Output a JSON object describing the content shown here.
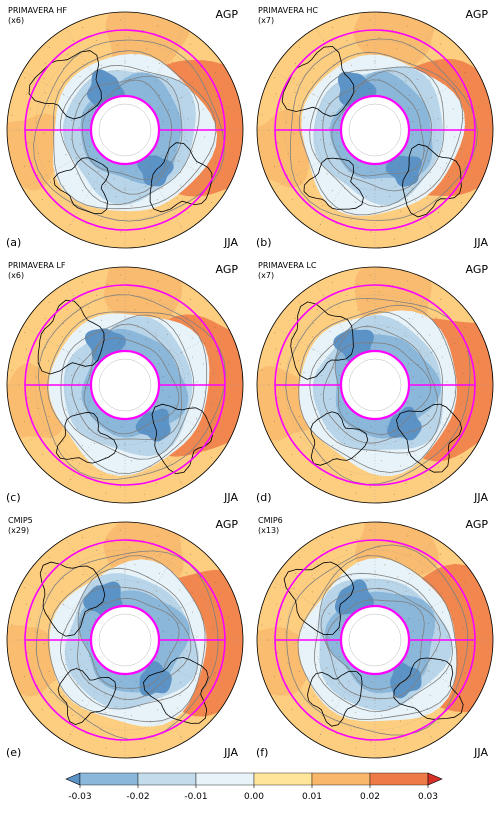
{
  "panels": [
    {
      "title": "PRIMAVERA HF",
      "count": "(x6)",
      "season": "AGP",
      "months": "JJA",
      "label": "(a)"
    },
    {
      "title": "PRIMAVERA HC",
      "count": "(x7)",
      "season": "AGP",
      "months": "JJA",
      "label": "(b)"
    },
    {
      "title": "PRIMAVERA LF",
      "count": "(x6)",
      "season": "AGP",
      "months": "JJA",
      "label": "(c)"
    },
    {
      "title": "PRIMAVERA LC",
      "count": "(x7)",
      "season": "AGP",
      "months": "JJA",
      "label": "(d)"
    },
    {
      "title": "CMIP5",
      "count": "(x29)",
      "season": "AGP",
      "months": "JJA",
      "label": "(e)"
    },
    {
      "title": "CMIP6",
      "count": "(x13)",
      "season": "AGP",
      "months": "JJA",
      "label": "(f)"
    }
  ],
  "colorbar": {
    "ticks": [
      "-0.03",
      "-0.02",
      "-0.01",
      "0.00",
      "0.01",
      "0.02",
      "0.03"
    ],
    "bins": [
      "#5c93c6",
      "#8ab7da",
      "#c2dcec",
      "#e7f3f8",
      "#fee59a",
      "#f8b76a",
      "#ee7a47",
      "#d73027"
    ]
  },
  "colors": {
    "box_lines": "#ff00ff",
    "coast": "#000000",
    "contours": "#7f7f7f",
    "warm_ring": "#fdcd80",
    "cool_core": "#b9d5e9"
  }
}
